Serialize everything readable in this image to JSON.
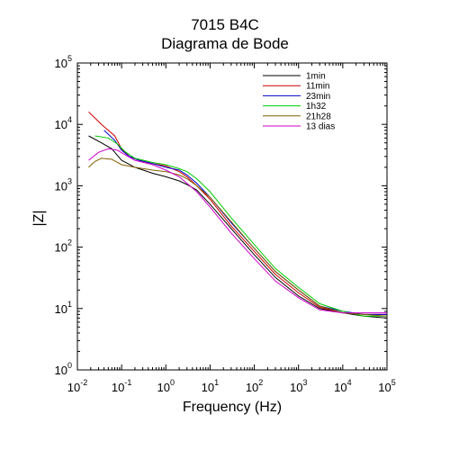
{
  "chart_data": {
    "type": "line",
    "title": "7015 B4C",
    "subtitle": "Diagrama de Bode",
    "xlabel": "Frequency (Hz)",
    "ylabel": "|Z|",
    "xscale": "log",
    "yscale": "log",
    "xlim": [
      0.01,
      100000
    ],
    "ylim": [
      1,
      100000
    ],
    "x_ticks": [
      {
        "base": "10",
        "exp": "-2"
      },
      {
        "base": "10",
        "exp": "-1"
      },
      {
        "base": "10",
        "exp": "0"
      },
      {
        "base": "10",
        "exp": "1"
      },
      {
        "base": "10",
        "exp": "2"
      },
      {
        "base": "10",
        "exp": "3"
      },
      {
        "base": "10",
        "exp": "4"
      },
      {
        "base": "10",
        "exp": "5"
      }
    ],
    "y_ticks": [
      {
        "base": "10",
        "exp": "0"
      },
      {
        "base": "10",
        "exp": "1"
      },
      {
        "base": "10",
        "exp": "2"
      },
      {
        "base": "10",
        "exp": "3"
      },
      {
        "base": "10",
        "exp": "4"
      },
      {
        "base": "10",
        "exp": "5"
      }
    ],
    "grid": false,
    "legend_position": "top-right",
    "series": [
      {
        "name": "1min",
        "color": "#000000",
        "x": [
          0.018,
          0.035,
          0.06,
          0.1,
          0.2,
          0.5,
          1,
          2,
          3,
          5,
          10,
          30,
          100,
          300,
          1000,
          3000,
          10000,
          30000,
          100000
        ],
        "y": [
          6500,
          5000,
          4000,
          2600,
          2000,
          1600,
          1400,
          1200,
          1050,
          850,
          500,
          200,
          75,
          32,
          16,
          10,
          8.5,
          7.5,
          7
        ]
      },
      {
        "name": "11min",
        "color": "#cc0000",
        "x": [
          0.018,
          0.035,
          0.07,
          0.1,
          0.15,
          0.25,
          0.5,
          1,
          2,
          3,
          5,
          10,
          30,
          100,
          300,
          1000,
          3000,
          10000,
          30000,
          100000
        ],
        "y": [
          16000,
          10000,
          6500,
          4000,
          3000,
          2600,
          2300,
          2100,
          1700,
          1400,
          1000,
          600,
          220,
          85,
          36,
          18,
          10.5,
          8.5,
          8,
          8
        ]
      },
      {
        "name": "23min",
        "color": "#0000cc",
        "x": [
          0.04,
          0.07,
          0.1,
          0.15,
          0.25,
          0.5,
          1,
          2,
          3,
          5,
          10,
          30,
          100,
          300,
          1000,
          3000,
          10000,
          30000,
          100000
        ],
        "y": [
          8000,
          5500,
          3800,
          3000,
          2600,
          2300,
          2000,
          1800,
          1500,
          1100,
          650,
          250,
          95,
          40,
          20,
          11,
          9,
          8,
          8
        ]
      },
      {
        "name": "1h32",
        "color": "#00cc00",
        "x": [
          0.025,
          0.05,
          0.08,
          0.12,
          0.2,
          0.5,
          1,
          2,
          3,
          5,
          10,
          30,
          100,
          300,
          1000,
          3000,
          10000,
          30000,
          100000
        ],
        "y": [
          6500,
          6000,
          4800,
          3600,
          2800,
          2400,
          2200,
          1900,
          1700,
          1300,
          800,
          300,
          110,
          45,
          22,
          12,
          9,
          7.5,
          7.5
        ]
      },
      {
        "name": "21h28",
        "color": "#806000",
        "x": [
          0.018,
          0.025,
          0.035,
          0.06,
          0.1,
          0.2,
          0.5,
          1,
          2,
          3,
          5,
          10,
          30,
          100,
          300,
          1000,
          3000,
          10000,
          30000,
          100000
        ],
        "y": [
          2000,
          2500,
          2800,
          2700,
          2200,
          2000,
          1800,
          1700,
          1500,
          1300,
          1000,
          650,
          260,
          95,
          40,
          20,
          11,
          8.5,
          8,
          7.5
        ]
      },
      {
        "name": "13 dias",
        "color": "#cc00cc",
        "x": [
          0.018,
          0.03,
          0.05,
          0.08,
          0.12,
          0.2,
          0.5,
          1,
          2,
          3,
          5,
          10,
          30,
          100,
          300,
          1000,
          3000,
          10000,
          30000,
          100000
        ],
        "y": [
          2600,
          3500,
          4000,
          3800,
          3200,
          2600,
          2200,
          1800,
          1400,
          1100,
          800,
          450,
          170,
          65,
          28,
          15,
          9.5,
          8.5,
          8.5,
          8.5
        ]
      }
    ]
  }
}
